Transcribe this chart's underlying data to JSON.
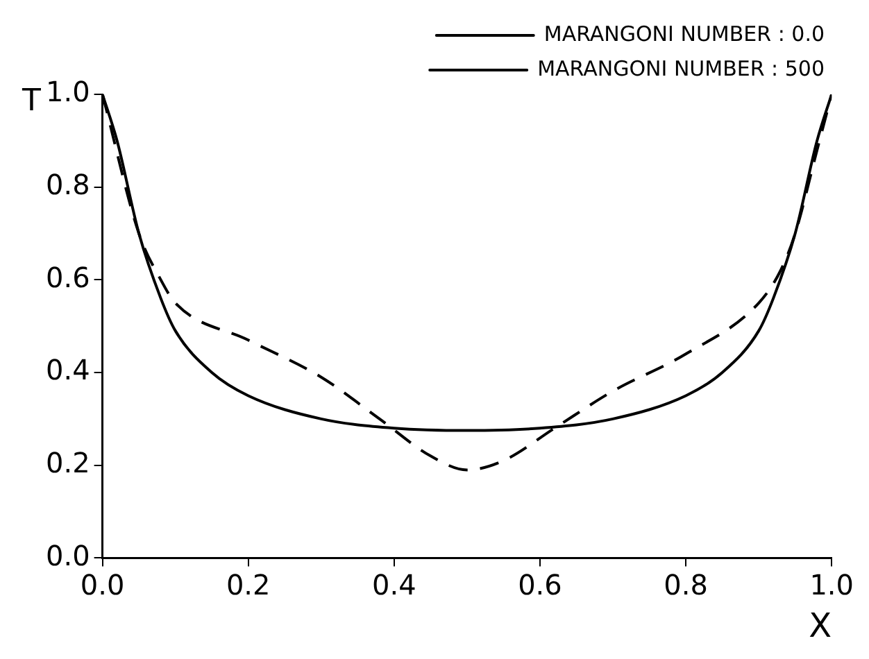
{
  "chart_data": {
    "type": "line",
    "xlabel": "X",
    "ylabel": "T",
    "xlim": [
      0,
      1
    ],
    "ylim": [
      0,
      1
    ],
    "xticks": [
      {
        "value": 0,
        "label": "0.0"
      },
      0.2,
      0.4,
      0.6,
      0.8,
      {
        "value": 1,
        "label": "1.0"
      }
    ],
    "yticks": [
      {
        "value": 0,
        "label": "0.0"
      },
      0.2,
      0.4,
      0.6,
      0.8,
      {
        "value": 1,
        "label": "1.0"
      }
    ],
    "grid": false,
    "legend": "top right",
    "marker": "none",
    "series": [
      {
        "name": "MARANGONI NUMBER : 0.0",
        "color": "#000000",
        "line_style": "solid",
        "x": [
          0,
          0.02,
          0.05,
          0.08,
          0.1,
          0.15,
          0.2,
          0.3,
          0.4,
          0.5,
          0.6,
          0.7,
          0.8,
          0.85,
          0.9,
          0.92,
          0.95,
          0.98,
          1.0
        ],
        "values": [
          1.0,
          0.9,
          0.7,
          0.56,
          0.49,
          0.4,
          0.35,
          0.3,
          0.28,
          0.275,
          0.28,
          0.3,
          0.35,
          0.4,
          0.49,
          0.56,
          0.7,
          0.9,
          1.0
        ]
      },
      {
        "name": "MARANGONI NUMBER : 500",
        "color": "#000000",
        "line_style": "dashed",
        "x": [
          0,
          0.05,
          0.08,
          0.1,
          0.2,
          0.3,
          0.38,
          0.45,
          0.5,
          0.55,
          0.62,
          0.7,
          0.8,
          0.9,
          0.93,
          0.95,
          0.98,
          1.0
        ],
        "values": [
          1.0,
          0.7,
          0.6,
          0.55,
          0.47,
          0.39,
          0.3,
          0.22,
          0.19,
          0.21,
          0.28,
          0.36,
          0.44,
          0.55,
          0.62,
          0.7,
          0.88,
          1.0
        ]
      }
    ]
  }
}
